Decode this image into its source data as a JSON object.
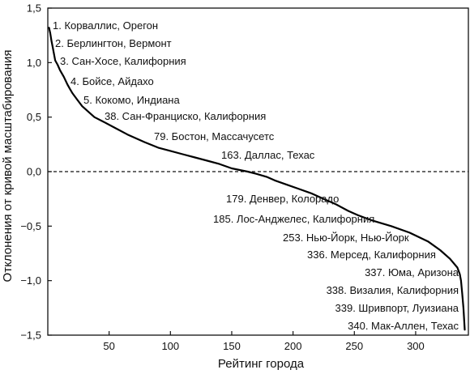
{
  "chart_data": {
    "type": "line",
    "title": "",
    "xlabel": "Рейтинг города",
    "ylabel": "Отклонения от кривой масштабирования",
    "xlim": [
      0,
      343
    ],
    "ylim": [
      -1.5,
      1.5
    ],
    "x_ticks": [
      50,
      100,
      150,
      200,
      250,
      300
    ],
    "y_ticks": [
      1.5,
      1.0,
      0.5,
      0.0,
      -0.5,
      -1.0,
      -1.5
    ],
    "y_tick_labels": [
      "1,5",
      "1,0",
      "0,5",
      "0,0",
      "−0,5",
      "−1,0",
      "−1,5"
    ],
    "grid": false,
    "legend": "none",
    "reference_line": {
      "y": 0.0,
      "style": "dashed"
    },
    "series": [
      {
        "x": [
          1,
          2,
          3,
          4,
          5,
          6,
          8,
          10,
          13,
          16,
          18,
          20,
          24,
          28,
          32,
          38,
          45,
          55,
          65,
          79,
          90,
          100,
          110,
          120,
          130,
          140,
          150,
          163,
          170,
          179,
          185,
          195,
          205,
          215,
          225,
          235,
          245,
          253,
          265,
          280,
          295,
          310,
          320,
          328,
          334,
          336,
          337,
          338,
          339,
          340
        ],
        "values": [
          1.32,
          1.27,
          1.2,
          1.14,
          1.08,
          1.02,
          0.98,
          0.93,
          0.87,
          0.8,
          0.76,
          0.72,
          0.66,
          0.6,
          0.56,
          0.5,
          0.46,
          0.4,
          0.34,
          0.27,
          0.22,
          0.19,
          0.16,
          0.13,
          0.1,
          0.07,
          0.03,
          0.0,
          -0.02,
          -0.05,
          -0.08,
          -0.12,
          -0.16,
          -0.2,
          -0.25,
          -0.3,
          -0.36,
          -0.4,
          -0.45,
          -0.5,
          -0.56,
          -0.64,
          -0.72,
          -0.8,
          -0.88,
          -0.94,
          -1.0,
          -1.12,
          -1.25,
          -1.45
        ]
      }
    ],
    "annotations": [
      {
        "rank": 1,
        "text": "1. Корваллис, Орегон"
      },
      {
        "rank": 2,
        "text": "2. Берлингтон, Вермонт"
      },
      {
        "rank": 3,
        "text": "3. Сан-Хосе, Калифорния"
      },
      {
        "rank": 4,
        "text": "4. Бойсе, Айдахо"
      },
      {
        "rank": 5,
        "text": "5. Кокомо, Индиана"
      },
      {
        "rank": 38,
        "text": "38. Сан-Франциско, Калифорния"
      },
      {
        "rank": 79,
        "text": "79. Бостон, Массачусетс"
      },
      {
        "rank": 163,
        "text": "163. Даллас, Техас"
      },
      {
        "rank": 179,
        "text": "179. Денвер, Колорадо"
      },
      {
        "rank": 185,
        "text": "185. Лос-Анджелес, Калифорния"
      },
      {
        "rank": 253,
        "text": "253. Нью-Йорк, Нью-Йорк"
      },
      {
        "rank": 336,
        "text": "336. Мерсед, Калифорния"
      },
      {
        "rank": 337,
        "text": "337. Юма, Аризона"
      },
      {
        "rank": 338,
        "text": "338. Визалия, Калифорния"
      },
      {
        "rank": 339,
        "text": "339. Шривпорт, Луизиана"
      },
      {
        "rank": 340,
        "text": "340. Мак-Аллен, Техас"
      }
    ]
  }
}
